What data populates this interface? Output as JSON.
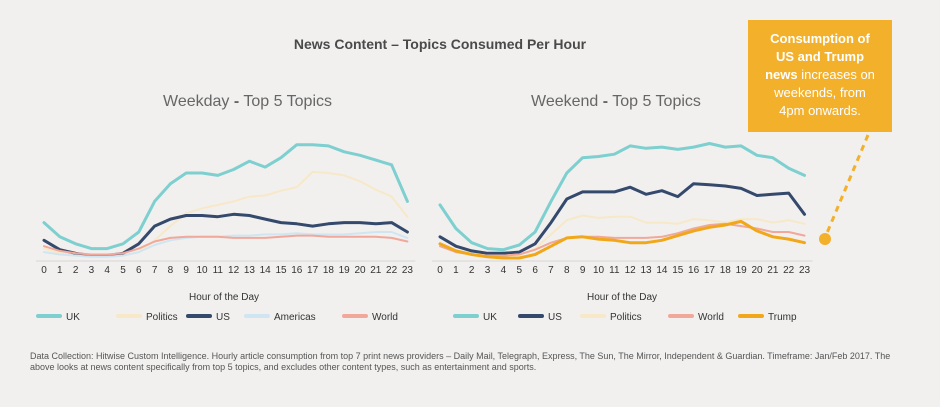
{
  "main_title": "News Content – Topics Consumed Per Hour",
  "callout": {
    "line1": "Consumption of",
    "line2": "US and Trump",
    "line3a": "news",
    "line3b": "increases on",
    "line4": "weekends, from",
    "line5": "4pm onwards."
  },
  "footnote": "Data Collection: Hitwise Custom Intelligence. Hourly article consumption from top 7 print news providers – Daily Mail, Telegraph, Express, The Sun, The Mirror, Independent & Guardian. Timeframe: Jan/Feb 2017. The above looks at news content specifically from top 5 topics, and excludes other content types, such as entertainment and sports.",
  "colors": {
    "UK": "#7ecfcf",
    "Politics": "#f7e8c8",
    "US": "#34496b",
    "Americas": "#cfe6f2",
    "World": "#f1a89a",
    "Trump": "#f0a81a",
    "callout": "#f3b02b"
  },
  "chart_data": [
    {
      "type": "line",
      "title_main": "Weekday",
      "title_sep": "-",
      "title_rest": "Top 5 Topics",
      "xlabel": "Hour of the Day",
      "ylabel": "",
      "x": [
        0,
        1,
        2,
        3,
        4,
        5,
        6,
        7,
        8,
        9,
        10,
        11,
        12,
        13,
        14,
        15,
        16,
        17,
        18,
        19,
        20,
        21,
        22,
        23
      ],
      "ylim": [
        0,
        100
      ],
      "series": [
        {
          "name": "UK",
          "values": [
            30,
            18,
            12,
            8,
            8,
            12,
            22,
            48,
            63,
            72,
            72,
            70,
            75,
            82,
            77,
            85,
            96,
            96,
            95,
            90,
            87,
            83,
            79,
            48
          ]
        },
        {
          "name": "Politics",
          "values": [
            8,
            4,
            2,
            1,
            1,
            2,
            5,
            15,
            27,
            38,
            42,
            45,
            48,
            52,
            53,
            57,
            60,
            73,
            72,
            70,
            65,
            58,
            52,
            35
          ]
        },
        {
          "name": "US",
          "values": [
            15,
            7,
            4,
            2,
            2,
            4,
            12,
            27,
            33,
            36,
            36,
            35,
            37,
            36,
            33,
            30,
            29,
            27,
            29,
            30,
            30,
            29,
            30,
            22
          ]
        },
        {
          "name": "Americas",
          "values": [
            5,
            3,
            2,
            1,
            1,
            2,
            5,
            11,
            15,
            17,
            18,
            18,
            19,
            19,
            20,
            20,
            21,
            20,
            20,
            20,
            21,
            22,
            22,
            17
          ]
        },
        {
          "name": "World",
          "values": [
            10,
            6,
            4,
            3,
            3,
            4,
            8,
            14,
            17,
            18,
            18,
            18,
            17,
            17,
            17,
            18,
            19,
            19,
            18,
            18,
            18,
            18,
            17,
            14
          ]
        }
      ],
      "legend": [
        "UK",
        "Politics",
        "US",
        "Americas",
        "World"
      ]
    },
    {
      "type": "line",
      "title_main": "Weekend",
      "title_sep": "-",
      "title_rest": "Top 5 Topics",
      "xlabel": "Hour of the Day",
      "ylabel": "",
      "x": [
        0,
        1,
        2,
        3,
        4,
        5,
        6,
        7,
        8,
        9,
        10,
        11,
        12,
        13,
        14,
        15,
        16,
        17,
        18,
        19,
        20,
        21,
        22,
        23
      ],
      "ylim": [
        0,
        100
      ],
      "series": [
        {
          "name": "UK",
          "values": [
            45,
            25,
            13,
            8,
            7,
            11,
            22,
            48,
            72,
            85,
            86,
            88,
            95,
            93,
            94,
            92,
            94,
            97,
            94,
            95,
            87,
            85,
            76,
            70
          ]
        },
        {
          "name": "US",
          "values": [
            18,
            10,
            6,
            4,
            4,
            5,
            12,
            30,
            50,
            56,
            56,
            56,
            60,
            54,
            57,
            52,
            63,
            62,
            61,
            59,
            53,
            54,
            55,
            37
          ]
        },
        {
          "name": "Politics",
          "values": [
            10,
            6,
            3,
            2,
            2,
            3,
            8,
            20,
            32,
            36,
            34,
            35,
            35,
            30,
            30,
            29,
            33,
            32,
            30,
            33,
            33,
            30,
            32,
            29
          ]
        },
        {
          "name": "World",
          "values": [
            10,
            5,
            3,
            2,
            2,
            3,
            7,
            13,
            17,
            18,
            18,
            17,
            17,
            17,
            18,
            21,
            25,
            28,
            29,
            27,
            25,
            22,
            22,
            19
          ]
        },
        {
          "name": "Trump",
          "values": [
            12,
            6,
            3,
            1,
            0,
            0,
            3,
            10,
            17,
            18,
            16,
            15,
            13,
            13,
            15,
            19,
            23,
            26,
            28,
            31,
            23,
            18,
            16,
            13
          ]
        }
      ],
      "legend": [
        "UK",
        "US",
        "Politics",
        "World",
        "Trump"
      ]
    }
  ]
}
